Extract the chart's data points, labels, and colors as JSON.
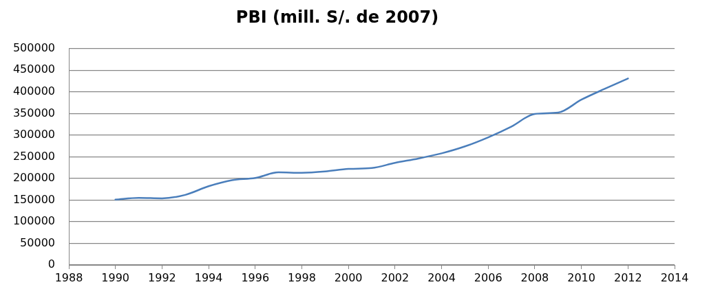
{
  "chart_data": {
    "type": "line",
    "title": "PBI (mill. S/. de 2007)",
    "x": [
      1990,
      1991,
      1992,
      1993,
      1994,
      1995,
      1996,
      1997,
      1998,
      1999,
      2000,
      2001,
      2002,
      2003,
      2004,
      2005,
      2006,
      2007,
      2008,
      2009,
      2010,
      2011,
      2012
    ],
    "series": [
      {
        "color": "#4a7ebb",
        "values": [
          151000,
          155000,
          154000,
          162000,
          182000,
          196000,
          201000,
          214000,
          213000,
          216000,
          222000,
          224000,
          236000,
          246000,
          258000,
          274000,
          295000,
          320000,
          349000,
          352000,
          382000,
          407000,
          431000
        ]
      }
    ],
    "xlim": [
      1988,
      2014
    ],
    "xticks": [
      1988,
      1990,
      1992,
      1994,
      1996,
      1998,
      2000,
      2002,
      2004,
      2006,
      2008,
      2010,
      2012,
      2014
    ],
    "ylim": [
      0,
      500000
    ],
    "yticks": [
      0,
      50000,
      100000,
      150000,
      200000,
      250000,
      300000,
      350000,
      400000,
      450000,
      500000
    ],
    "grid": "y",
    "marker": "none",
    "line_style": "solid"
  }
}
